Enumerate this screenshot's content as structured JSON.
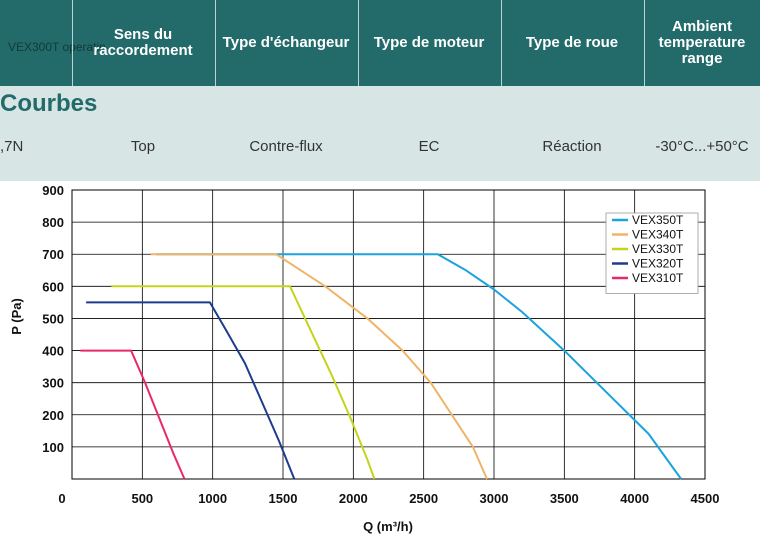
{
  "table": {
    "header_underlay": "VEX300T operatin",
    "headers": [
      "Sens du raccordement",
      "Type d'échangeur",
      "Type de moteur",
      "Type de roue",
      "Ambient temperature range"
    ],
    "section_title": "Courbes",
    "row": {
      "partial_value": ",7N",
      "values": [
        "Top",
        "Contre-flux",
        "EC",
        "Réaction",
        "-30°C...+50°C"
      ]
    }
  },
  "colors": {
    "header_bg": "#236b6a",
    "band_bg": "#d7e5e5",
    "title_color": "#236b6a"
  },
  "chart_data": {
    "type": "line",
    "xlabel": "Q (m³/h)",
    "ylabel": "P (Pa)",
    "xlim": [
      0,
      4500
    ],
    "ylim": [
      0,
      900
    ],
    "x_ticks": [
      0,
      500,
      1000,
      1500,
      2000,
      2500,
      3000,
      3500,
      4000,
      4500
    ],
    "y_ticks": [
      100,
      200,
      300,
      400,
      500,
      600,
      700,
      800,
      900
    ],
    "grid": true,
    "legend_position": "top-right",
    "series": [
      {
        "name": "VEX350T",
        "color": "#1aa3dd",
        "points": [
          [
            600,
            700
          ],
          [
            2600,
            700
          ],
          [
            2800,
            650
          ],
          [
            3000,
            590
          ],
          [
            3200,
            520
          ],
          [
            3500,
            400
          ],
          [
            3800,
            270
          ],
          [
            4100,
            140
          ],
          [
            4330,
            0
          ]
        ]
      },
      {
        "name": "VEX340T",
        "color": "#f0b468",
        "points": [
          [
            560,
            700
          ],
          [
            1450,
            700
          ],
          [
            1800,
            600
          ],
          [
            2100,
            500
          ],
          [
            2350,
            400
          ],
          [
            2550,
            300
          ],
          [
            2700,
            200
          ],
          [
            2850,
            100
          ],
          [
            2950,
            0
          ]
        ]
      },
      {
        "name": "VEX330T",
        "color": "#c4d41c",
        "points": [
          [
            280,
            600
          ],
          [
            1550,
            600
          ],
          [
            1700,
            460
          ],
          [
            1850,
            320
          ],
          [
            1980,
            190
          ],
          [
            2100,
            60
          ],
          [
            2150,
            0
          ]
        ]
      },
      {
        "name": "VEX320T",
        "color": "#1d3c8e",
        "points": [
          [
            100,
            550
          ],
          [
            980,
            550
          ],
          [
            1100,
            460
          ],
          [
            1230,
            360
          ],
          [
            1350,
            240
          ],
          [
            1470,
            120
          ],
          [
            1580,
            0
          ]
        ]
      },
      {
        "name": "VEX310T",
        "color": "#e8276d",
        "points": [
          [
            60,
            400
          ],
          [
            420,
            400
          ],
          [
            520,
            300
          ],
          [
            620,
            190
          ],
          [
            720,
            80
          ],
          [
            800,
            0
          ]
        ]
      }
    ]
  }
}
